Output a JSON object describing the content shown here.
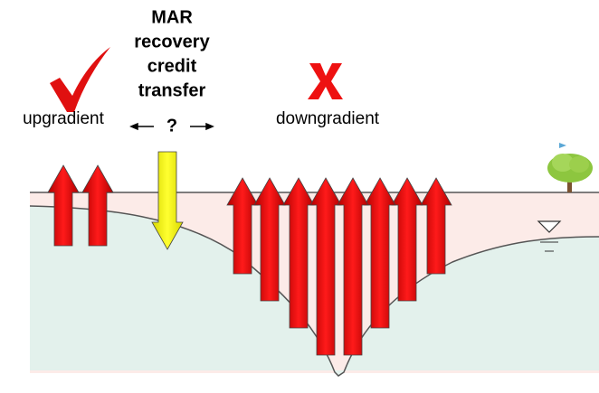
{
  "labels": {
    "upgradient": "upgradient",
    "transfer_title": [
      "MAR",
      "recovery",
      "credit",
      "transfer"
    ],
    "question": "?",
    "downgradient": "downgradient"
  }
}
